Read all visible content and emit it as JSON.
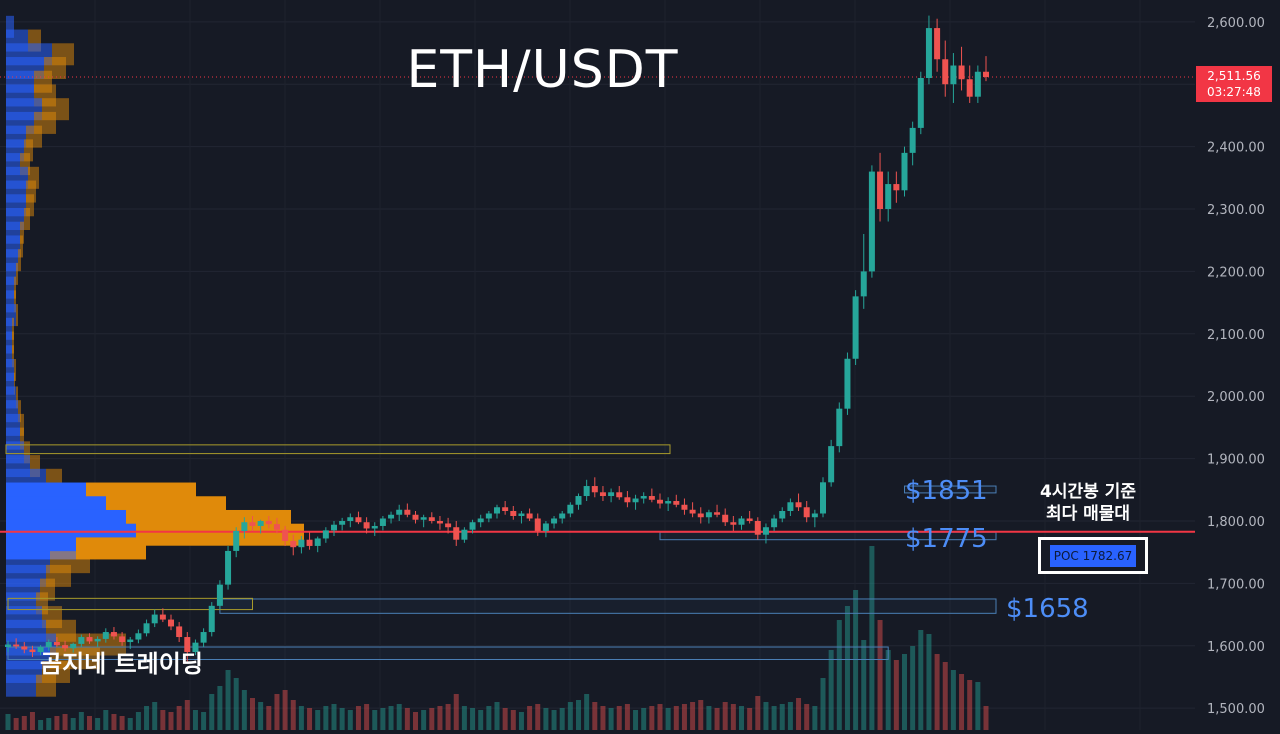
{
  "chart_data": {
    "type": "candlestick",
    "title": "ETH/USDT",
    "y_axis": {
      "ticks": [
        "1,500.00",
        "1,600.00",
        "1,700.00",
        "1,800.00",
        "1,900.00",
        "2,000.00",
        "2,100.00",
        "2,200.00",
        "2,300.00",
        "2,400.00",
        "2,500.00",
        "2,600.00"
      ],
      "tick_values": [
        1500,
        1600,
        1700,
        1800,
        1900,
        2000,
        2100,
        2200,
        2300,
        2400,
        2500,
        2600
      ],
      "range": [
        1465,
        2635
      ],
      "position": "right"
    },
    "grid": true,
    "last_price": {
      "value": 2511.56,
      "label": "2,511.56",
      "countdown": "03:27:48"
    },
    "poc": {
      "value": 1782.67,
      "label": "POC  1782.67"
    },
    "levels": [
      {
        "label": "$1851",
        "value": 1851
      },
      {
        "label": "$1775",
        "value": 1775
      },
      {
        "label": "$1658",
        "value": 1658
      }
    ],
    "annotation": [
      "4시간봉 기준",
      "최다 매물대"
    ],
    "watermark": "곰지네 트레이딩",
    "candles": [
      [
        1598,
        1608,
        1590,
        1602
      ],
      [
        1602,
        1612,
        1595,
        1599
      ],
      [
        1599,
        1606,
        1588,
        1594
      ],
      [
        1594,
        1600,
        1582,
        1590
      ],
      [
        1590,
        1601,
        1585,
        1598
      ],
      [
        1598,
        1610,
        1592,
        1606
      ],
      [
        1606,
        1614,
        1598,
        1601
      ],
      [
        1601,
        1608,
        1591,
        1596
      ],
      [
        1596,
        1605,
        1589,
        1603
      ],
      [
        1603,
        1618,
        1598,
        1614
      ],
      [
        1614,
        1620,
        1603,
        1607
      ],
      [
        1607,
        1615,
        1598,
        1611
      ],
      [
        1611,
        1628,
        1605,
        1622
      ],
      [
        1622,
        1630,
        1610,
        1615
      ],
      [
        1615,
        1622,
        1600,
        1606
      ],
      [
        1606,
        1614,
        1595,
        1610
      ],
      [
        1610,
        1626,
        1604,
        1620
      ],
      [
        1620,
        1642,
        1615,
        1636
      ],
      [
        1636,
        1658,
        1630,
        1650
      ],
      [
        1650,
        1660,
        1638,
        1642
      ],
      [
        1642,
        1650,
        1625,
        1631
      ],
      [
        1631,
        1638,
        1606,
        1614
      ],
      [
        1614,
        1622,
        1575,
        1590
      ],
      [
        1590,
        1610,
        1585,
        1605
      ],
      [
        1605,
        1628,
        1598,
        1622
      ],
      [
        1622,
        1670,
        1615,
        1664
      ],
      [
        1664,
        1705,
        1658,
        1698
      ],
      [
        1698,
        1760,
        1690,
        1752
      ],
      [
        1752,
        1790,
        1742,
        1784
      ],
      [
        1784,
        1806,
        1772,
        1798
      ],
      [
        1798,
        1808,
        1784,
        1792
      ],
      [
        1792,
        1802,
        1780,
        1800
      ],
      [
        1800,
        1808,
        1788,
        1795
      ],
      [
        1795,
        1805,
        1780,
        1786
      ],
      [
        1786,
        1792,
        1760,
        1768
      ],
      [
        1768,
        1778,
        1745,
        1758
      ],
      [
        1758,
        1776,
        1748,
        1770
      ],
      [
        1770,
        1782,
        1754,
        1760
      ],
      [
        1760,
        1775,
        1750,
        1772
      ],
      [
        1772,
        1790,
        1765,
        1785
      ],
      [
        1785,
        1800,
        1776,
        1794
      ],
      [
        1794,
        1805,
        1785,
        1800
      ],
      [
        1800,
        1812,
        1790,
        1806
      ],
      [
        1806,
        1815,
        1795,
        1798
      ],
      [
        1798,
        1806,
        1780,
        1788
      ],
      [
        1788,
        1798,
        1776,
        1792
      ],
      [
        1792,
        1808,
        1785,
        1804
      ],
      [
        1804,
        1815,
        1796,
        1810
      ],
      [
        1810,
        1826,
        1800,
        1818
      ],
      [
        1818,
        1828,
        1806,
        1810
      ],
      [
        1810,
        1816,
        1796,
        1802
      ],
      [
        1802,
        1810,
        1790,
        1806
      ],
      [
        1806,
        1814,
        1796,
        1800
      ],
      [
        1800,
        1808,
        1786,
        1796
      ],
      [
        1796,
        1805,
        1780,
        1790
      ],
      [
        1790,
        1800,
        1760,
        1770
      ],
      [
        1770,
        1790,
        1765,
        1786
      ],
      [
        1786,
        1802,
        1780,
        1798
      ],
      [
        1798,
        1810,
        1790,
        1804
      ],
      [
        1804,
        1816,
        1798,
        1812
      ],
      [
        1812,
        1826,
        1804,
        1822
      ],
      [
        1822,
        1832,
        1810,
        1816
      ],
      [
        1816,
        1824,
        1802,
        1808
      ],
      [
        1808,
        1816,
        1796,
        1812
      ],
      [
        1812,
        1820,
        1800,
        1804
      ],
      [
        1804,
        1812,
        1776,
        1784
      ],
      [
        1784,
        1800,
        1774,
        1796
      ],
      [
        1796,
        1808,
        1788,
        1804
      ],
      [
        1804,
        1816,
        1796,
        1812
      ],
      [
        1812,
        1830,
        1806,
        1826
      ],
      [
        1826,
        1844,
        1818,
        1840
      ],
      [
        1840,
        1866,
        1832,
        1856
      ],
      [
        1856,
        1870,
        1838,
        1846
      ],
      [
        1846,
        1856,
        1832,
        1840
      ],
      [
        1840,
        1852,
        1830,
        1846
      ],
      [
        1846,
        1856,
        1834,
        1838
      ],
      [
        1838,
        1848,
        1822,
        1830
      ],
      [
        1830,
        1842,
        1818,
        1836
      ],
      [
        1836,
        1846,
        1828,
        1840
      ],
      [
        1840,
        1852,
        1830,
        1834
      ],
      [
        1834,
        1844,
        1820,
        1828
      ],
      [
        1828,
        1838,
        1816,
        1832
      ],
      [
        1832,
        1842,
        1822,
        1826
      ],
      [
        1826,
        1836,
        1810,
        1818
      ],
      [
        1818,
        1830,
        1806,
        1812
      ],
      [
        1812,
        1822,
        1796,
        1806
      ],
      [
        1806,
        1818,
        1796,
        1814
      ],
      [
        1814,
        1826,
        1806,
        1810
      ],
      [
        1810,
        1820,
        1792,
        1798
      ],
      [
        1798,
        1808,
        1784,
        1794
      ],
      [
        1794,
        1808,
        1786,
        1804
      ],
      [
        1804,
        1816,
        1796,
        1800
      ],
      [
        1800,
        1806,
        1770,
        1778
      ],
      [
        1778,
        1796,
        1764,
        1790
      ],
      [
        1790,
        1810,
        1784,
        1804
      ],
      [
        1804,
        1822,
        1798,
        1816
      ],
      [
        1816,
        1836,
        1808,
        1830
      ],
      [
        1830,
        1844,
        1816,
        1822
      ],
      [
        1822,
        1832,
        1798,
        1806
      ],
      [
        1806,
        1818,
        1790,
        1812
      ],
      [
        1812,
        1870,
        1806,
        1862
      ],
      [
        1862,
        1930,
        1855,
        1920
      ],
      [
        1920,
        1990,
        1910,
        1980
      ],
      [
        1980,
        2070,
        1970,
        2060
      ],
      [
        2060,
        2170,
        2050,
        2160
      ],
      [
        2160,
        2260,
        2140,
        2200
      ],
      [
        2200,
        2370,
        2190,
        2360
      ],
      [
        2360,
        2390,
        2280,
        2300
      ],
      [
        2300,
        2360,
        2280,
        2340
      ],
      [
        2340,
        2360,
        2310,
        2330
      ],
      [
        2330,
        2400,
        2320,
        2390
      ],
      [
        2390,
        2440,
        2370,
        2430
      ],
      [
        2430,
        2520,
        2420,
        2510
      ],
      [
        2510,
        2610,
        2500,
        2590
      ],
      [
        2590,
        2605,
        2520,
        2540
      ],
      [
        2540,
        2570,
        2480,
        2500
      ],
      [
        2500,
        2550,
        2470,
        2530
      ],
      [
        2530,
        2560,
        2490,
        2508
      ],
      [
        2508,
        2530,
        2470,
        2480
      ],
      [
        2480,
        2530,
        2470,
        2520
      ],
      [
        2520,
        2545,
        2505,
        2511.56
      ]
    ],
    "volumes": [
      8,
      6,
      7,
      9,
      5,
      6,
      7,
      8,
      6,
      9,
      7,
      6,
      10,
      8,
      7,
      6,
      9,
      12,
      14,
      10,
      9,
      12,
      15,
      10,
      9,
      18,
      22,
      30,
      26,
      20,
      16,
      14,
      12,
      18,
      20,
      15,
      12,
      11,
      10,
      12,
      13,
      11,
      10,
      12,
      13,
      10,
      11,
      12,
      13,
      11,
      9,
      10,
      11,
      12,
      13,
      18,
      12,
      11,
      10,
      12,
      14,
      11,
      10,
      9,
      12,
      13,
      11,
      10,
      11,
      14,
      15,
      18,
      14,
      12,
      11,
      12,
      13,
      10,
      11,
      12,
      13,
      11,
      12,
      13,
      14,
      15,
      12,
      11,
      14,
      13,
      12,
      11,
      17,
      14,
      12,
      13,
      14,
      16,
      13,
      12,
      26,
      40,
      55,
      62,
      70,
      45,
      92,
      55,
      40,
      35,
      38,
      42,
      50,
      48,
      38,
      34,
      30,
      28,
      25,
      24,
      12
    ],
    "volume_profile": [
      [
        2592,
        8,
        0
      ],
      [
        2570,
        22,
        13
      ],
      [
        2548,
        46,
        22
      ],
      [
        2526,
        38,
        22
      ],
      [
        2504,
        28,
        18
      ],
      [
        2482,
        28,
        22
      ],
      [
        2460,
        36,
        27
      ],
      [
        2438,
        28,
        22
      ],
      [
        2416,
        20,
        16
      ],
      [
        2394,
        18,
        9
      ],
      [
        2372,
        14,
        10
      ],
      [
        2350,
        22,
        11
      ],
      [
        2328,
        20,
        10
      ],
      [
        2306,
        20,
        8
      ],
      [
        2284,
        18,
        6
      ],
      [
        2262,
        14,
        4
      ],
      [
        2240,
        14,
        3
      ],
      [
        2218,
        12,
        3
      ],
      [
        2196,
        10,
        2
      ],
      [
        2174,
        8,
        2
      ],
      [
        2152,
        8,
        2
      ],
      [
        2130,
        10,
        2
      ],
      [
        2108,
        6,
        2
      ],
      [
        2086,
        6,
        2
      ],
      [
        2064,
        6,
        2
      ],
      [
        2042,
        8,
        2
      ],
      [
        2020,
        8,
        1
      ],
      [
        1998,
        10,
        2
      ],
      [
        1976,
        12,
        3
      ],
      [
        1954,
        14,
        4
      ],
      [
        1932,
        14,
        4
      ],
      [
        1910,
        18,
        6
      ],
      [
        1888,
        24,
        10
      ],
      [
        1866,
        40,
        16
      ],
      [
        1844,
        80,
        110
      ],
      [
        1822,
        100,
        120
      ],
      [
        1800,
        120,
        165
      ],
      [
        1778,
        130,
        168
      ],
      [
        1756,
        70,
        70
      ],
      [
        1734,
        44,
        40
      ],
      [
        1712,
        40,
        25
      ],
      [
        1690,
        34,
        15
      ],
      [
        1668,
        30,
        12
      ],
      [
        1646,
        36,
        20
      ],
      [
        1624,
        40,
        30
      ],
      [
        1602,
        50,
        70
      ],
      [
        1580,
        44,
        50
      ],
      [
        1558,
        36,
        28
      ],
      [
        1536,
        30,
        20
      ]
    ],
    "zones": [
      {
        "low": 1845,
        "high": 1856,
        "x0": 110,
        "x1": 121
      },
      {
        "low": 1770,
        "high": 1782,
        "x0": 80,
        "x1": 121
      },
      {
        "low": 1652,
        "high": 1675,
        "x0": 26,
        "x1": 121
      },
      {
        "low": 1578,
        "high": 1598,
        "x0": 0,
        "x1": 108
      },
      {
        "low": 1908,
        "high": 1922,
        "x0": 0,
        "x1": 80
      },
      {
        "low": 1658,
        "high": 1676,
        "x0": 0,
        "x1": 30
      }
    ]
  }
}
